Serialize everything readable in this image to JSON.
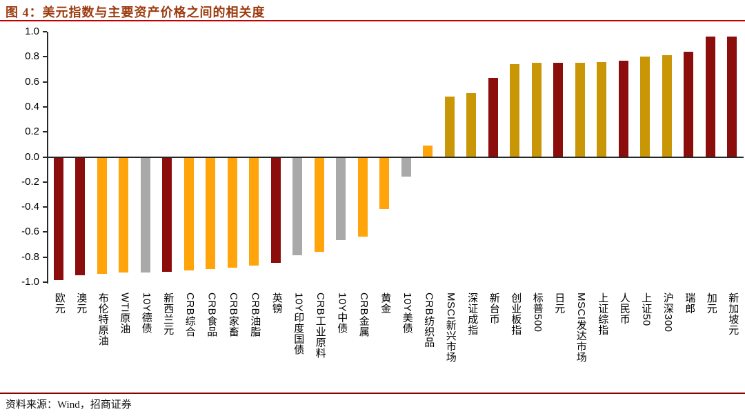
{
  "page": {
    "title": "图 4：美元指数与主要资产价格之间的相关度",
    "source": "资料来源：Wind，招商证券"
  },
  "colors": {
    "title_text": "#9C3A0E",
    "top_rule": "#C00000",
    "bottom_rule": "#8B0000",
    "axis": "#262626",
    "currency_bar": "#8B0E0C",
    "commodity_bar": "#FFA40A",
    "bond_bar": "#A9A9A9",
    "equity_bar": "#C99705"
  },
  "chart_data": {
    "type": "bar",
    "title": "美元指数与主要资产价格之间的相关度",
    "xlabel": "",
    "ylabel": "",
    "ylim": [
      -1.0,
      1.0
    ],
    "yticks": [
      1.0,
      0.8,
      0.6,
      0.4,
      0.2,
      0.0,
      -0.2,
      -0.4,
      -0.6,
      -0.8,
      -1.0
    ],
    "grid": false,
    "legend_position": "none",
    "categories": [
      "欧元",
      "澳元",
      "布伦特原油",
      "WTI原油",
      "10Y德债",
      "新西兰元",
      "CRB综合",
      "CRB食品",
      "CRB家畜",
      "CRB油脂",
      "英镑",
      "10Y印度国债",
      "CRB工业原料",
      "10Y中债",
      "CRB金属",
      "黄金",
      "10Y美债",
      "CRB纺织品",
      "MSCI新兴市场",
      "深证成指",
      "新台币",
      "创业板指",
      "标普500",
      "日元",
      "MSCI发达市场",
      "上证综指",
      "人民币",
      "上证50",
      "沪深300",
      "瑞郎",
      "加元",
      "新加坡元"
    ],
    "values": [
      -0.98,
      -0.94,
      -0.93,
      -0.92,
      -0.92,
      -0.91,
      -0.9,
      -0.89,
      -0.88,
      -0.86,
      -0.84,
      -0.78,
      -0.75,
      -0.66,
      -0.63,
      -0.41,
      -0.15,
      0.09,
      0.48,
      0.51,
      0.63,
      0.74,
      0.75,
      0.75,
      0.75,
      0.76,
      0.77,
      0.8,
      0.81,
      0.84,
      0.96,
      0.96
    ],
    "groups": [
      "currency",
      "currency",
      "commodity",
      "commodity",
      "bond",
      "currency",
      "commodity",
      "commodity",
      "commodity",
      "commodity",
      "currency",
      "bond",
      "commodity",
      "bond",
      "commodity",
      "commodity",
      "bond",
      "commodity",
      "equity",
      "equity",
      "currency",
      "equity",
      "equity",
      "currency",
      "equity",
      "equity",
      "currency",
      "equity",
      "equity",
      "currency",
      "currency",
      "currency"
    ]
  }
}
